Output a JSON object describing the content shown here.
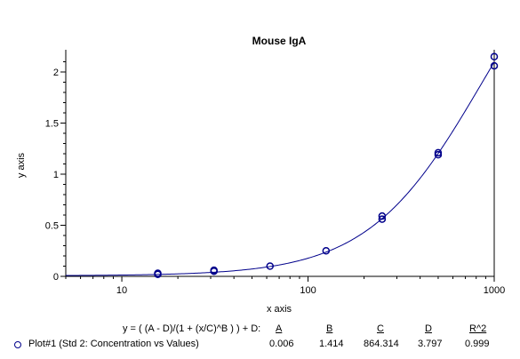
{
  "colors": {
    "series": "#00008B",
    "axis": "#000000",
    "background": "#ffffff"
  },
  "chart_data": {
    "type": "scatter",
    "title": "Mouse IgA",
    "xlabel": "x axis",
    "ylabel": "y axis",
    "xscale": "log",
    "xlim": [
      5,
      1000
    ],
    "ylim": [
      0,
      2.2
    ],
    "x_ticks": [
      10,
      100,
      1000
    ],
    "x_tick_labels": [
      "10",
      "100",
      "1000"
    ],
    "y_ticks": [
      0,
      0.5,
      1,
      1.5,
      2
    ],
    "y_tick_labels": [
      "0",
      "0.5",
      "1",
      "1.5",
      "2"
    ],
    "series": [
      {
        "name": "Plot#1 (Std 2: Concentration vs Values)",
        "points": [
          {
            "x": 15.6,
            "y": 0.02
          },
          {
            "x": 15.6,
            "y": 0.03
          },
          {
            "x": 31.25,
            "y": 0.05
          },
          {
            "x": 31.25,
            "y": 0.06
          },
          {
            "x": 62.5,
            "y": 0.1
          },
          {
            "x": 125,
            "y": 0.25
          },
          {
            "x": 250,
            "y": 0.56
          },
          {
            "x": 250,
            "y": 0.59
          },
          {
            "x": 500,
            "y": 1.19
          },
          {
            "x": 500,
            "y": 1.21
          },
          {
            "x": 1000,
            "y": 2.06
          },
          {
            "x": 1000,
            "y": 2.15
          }
        ]
      }
    ],
    "fit": {
      "equation": "y = ( (A - D)/(1 + (x/C)^B ) ) + D:",
      "headers": [
        "A",
        "B",
        "C",
        "D",
        "R^2"
      ],
      "values": [
        "0.006",
        "1.414",
        "864.314",
        "3.797",
        "0.999"
      ],
      "params": {
        "A": 0.006,
        "B": 1.414,
        "C": 864.314,
        "D": 3.797
      }
    },
    "grid": false,
    "legend_position": "bottom"
  }
}
